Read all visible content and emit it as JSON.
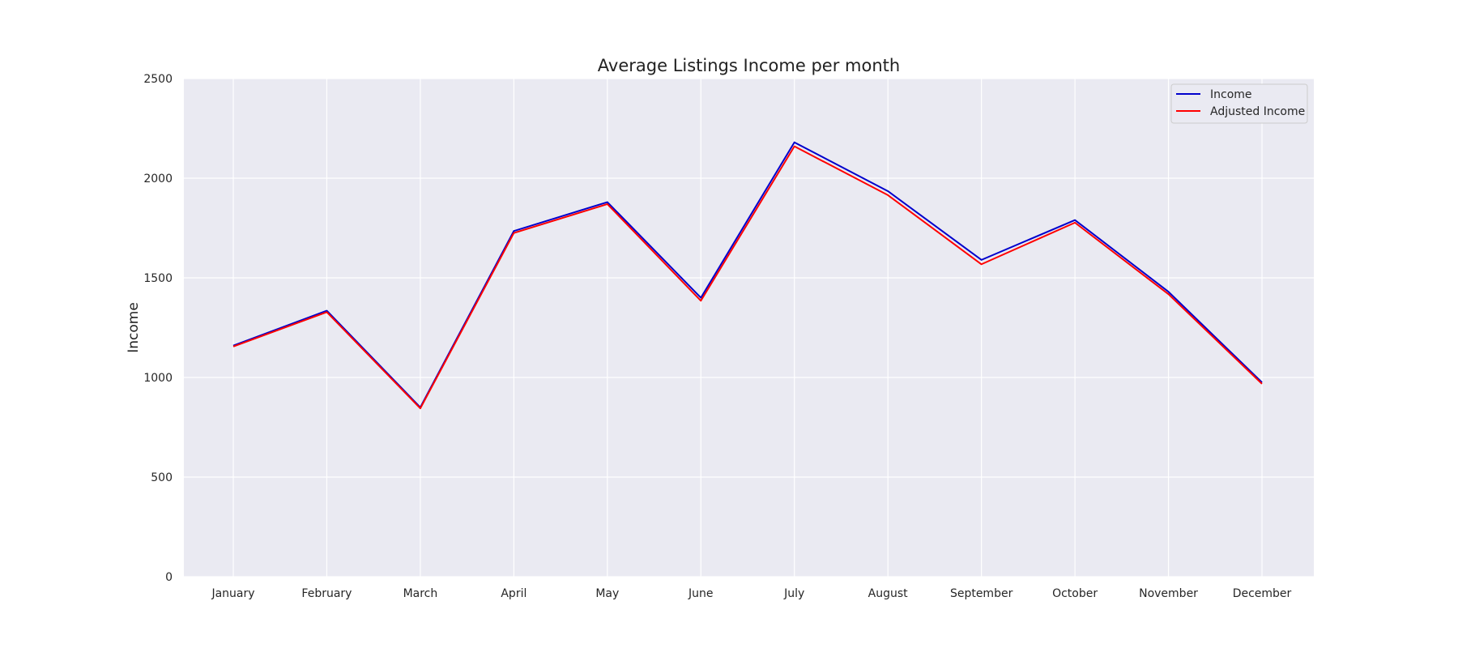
{
  "chart_data": {
    "type": "line",
    "title": "Average Listings Income per month",
    "xlabel": "",
    "ylabel": "Income",
    "categories": [
      "January",
      "February",
      "March",
      "April",
      "May",
      "June",
      "July",
      "August",
      "September",
      "October",
      "November",
      "December"
    ],
    "series": [
      {
        "name": "Income",
        "color": "#0000cc",
        "values": [
          1160,
          1335,
          850,
          1735,
          1880,
          1400,
          2180,
          1935,
          1590,
          1790,
          1430,
          975
        ]
      },
      {
        "name": "Adjusted Income",
        "color": "#ff0000",
        "values": [
          1155,
          1328,
          845,
          1725,
          1870,
          1385,
          2160,
          1915,
          1568,
          1777,
          1418,
          968
        ]
      }
    ],
    "ylim": [
      0,
      2500
    ],
    "yticks": [
      0,
      500,
      1000,
      1500,
      2000,
      2500
    ],
    "grid": true,
    "legend_position": "top-right",
    "background_color": "#eaeaf2",
    "grid_color": "#ffffff"
  }
}
